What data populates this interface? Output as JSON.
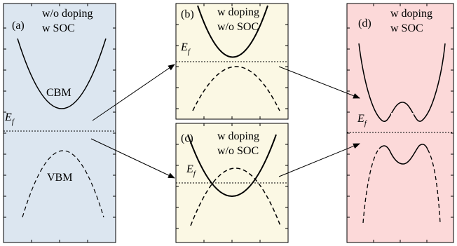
{
  "panels": [
    {
      "id": "a",
      "letter": "(a)",
      "line1": "w/o doping",
      "line2": "w SOC",
      "fill": "#dce6f0",
      "band_labels": {
        "upper": "CBM",
        "lower": "VBM"
      },
      "fermi_label": "E",
      "fermi_sub": "f"
    },
    {
      "id": "b",
      "letter": "(b)",
      "line1": "w doping",
      "line2": "w/o SOC",
      "fill": "#fbf8e4",
      "fermi_label": "E",
      "fermi_sub": "f"
    },
    {
      "id": "c",
      "letter": "(c)",
      "line1": "w doping",
      "line2": "w/o SOC",
      "fill": "#fbf8e4",
      "fermi_label": "E",
      "fermi_sub": "f"
    },
    {
      "id": "d",
      "letter": "(d)",
      "line1": "w doping",
      "line2": "w SOC",
      "fill": "#fcd9d9",
      "fermi_label": "E",
      "fermi_sub": "f"
    }
  ],
  "colors": {
    "stroke": "#000000"
  }
}
